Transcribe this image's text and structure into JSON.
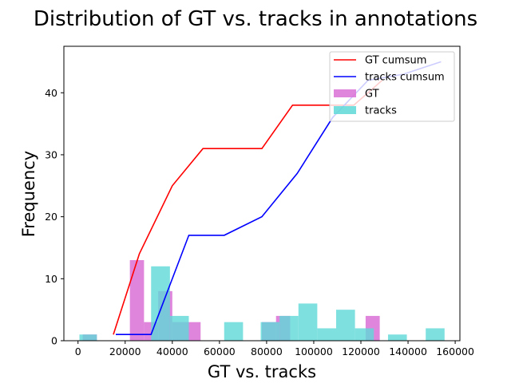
{
  "chart_data": {
    "type": "bar",
    "title": "Distribution of GT vs. tracks in annotations",
    "xlabel": "GT vs. tracks",
    "ylabel": "Frequency",
    "xlim": [
      -6000,
      162000
    ],
    "ylim": [
      0,
      47.5
    ],
    "xticks": [
      0,
      20000,
      40000,
      60000,
      80000,
      100000,
      120000,
      140000,
      160000
    ],
    "yticks": [
      0,
      10,
      20,
      30,
      40
    ],
    "legend_position": "upper right",
    "grid": false,
    "histograms": [
      {
        "name": "GT",
        "color": "#da70d6",
        "bars": [
          {
            "x0": 2000,
            "x1": 8000,
            "value": 1
          },
          {
            "x0": 22000,
            "x1": 28000,
            "value": 13
          },
          {
            "x0": 28000,
            "x1": 34000,
            "value": 3
          },
          {
            "x0": 34000,
            "x1": 40000,
            "value": 8
          },
          {
            "x0": 40000,
            "x1": 46000,
            "value": 3
          },
          {
            "x0": 46000,
            "x1": 52000,
            "value": 3
          },
          {
            "x0": 78000,
            "x1": 84000,
            "value": 3
          },
          {
            "x0": 84000,
            "x1": 90000,
            "value": 4
          },
          {
            "x0": 122000,
            "x1": 128000,
            "value": 4
          }
        ]
      },
      {
        "name": "tracks",
        "color": "#5fd8d8",
        "bars": [
          {
            "x0": 600,
            "x1": 8000,
            "value": 1
          },
          {
            "x0": 31000,
            "x1": 39000,
            "value": 12
          },
          {
            "x0": 39000,
            "x1": 47000,
            "value": 4
          },
          {
            "x0": 62000,
            "x1": 70000,
            "value": 3
          },
          {
            "x0": 77500,
            "x1": 85500,
            "value": 3
          },
          {
            "x0": 85500,
            "x1": 93500,
            "value": 4
          },
          {
            "x0": 93500,
            "x1": 101500,
            "value": 6
          },
          {
            "x0": 101500,
            "x1": 109500,
            "value": 2
          },
          {
            "x0": 109500,
            "x1": 117500,
            "value": 5
          },
          {
            "x0": 117500,
            "x1": 125500,
            "value": 2
          },
          {
            "x0": 131500,
            "x1": 139500,
            "value": 1
          },
          {
            "x0": 147500,
            "x1": 155500,
            "value": 2
          }
        ]
      }
    ],
    "series": [
      {
        "name": "GT cumsum",
        "color": "#ff0000",
        "x": [
          15000,
          26000,
          40000,
          53000,
          66000,
          78000,
          91000,
          104000,
          117000,
          129000
        ],
        "values": [
          1,
          14,
          25,
          31,
          31,
          31,
          38,
          38,
          38,
          42
        ]
      },
      {
        "name": "tracks cumsum",
        "color": "#0000ff",
        "x": [
          16000,
          31000,
          47000,
          62000,
          78000,
          93000,
          108000,
          123000,
          138000,
          154000
        ],
        "values": [
          1,
          1,
          17,
          17,
          20,
          27,
          36,
          42,
          43,
          45
        ]
      }
    ]
  }
}
